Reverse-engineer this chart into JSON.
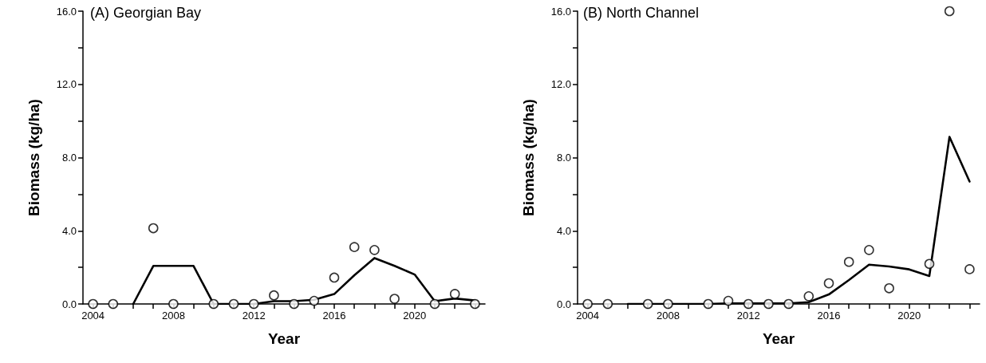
{
  "chart_data": [
    {
      "type": "line",
      "title": "(A) Georgian Bay",
      "xlabel": "Year",
      "ylabel": "Biomass (kg/ha)",
      "x": [
        2004,
        2005,
        2006,
        2007,
        2008,
        2009,
        2010,
        2011,
        2012,
        2013,
        2014,
        2015,
        2016,
        2017,
        2018,
        2019,
        2020,
        2021,
        2022,
        2023
      ],
      "series": [
        {
          "type": "scatter",
          "marker": "circle",
          "color": "#000000",
          "values": [
            0,
            0,
            null,
            4.14,
            0,
            null,
            0,
            0,
            0,
            0.47,
            0,
            0.17,
            1.44,
            3.11,
            2.95,
            0.28,
            null,
            0,
            0.55,
            0
          ]
        },
        {
          "marker": "none",
          "line_style": "solid",
          "color": "#000000",
          "values": [
            null,
            null,
            0,
            2.08,
            2.08,
            2.08,
            0,
            0,
            0,
            0.15,
            0.15,
            0.23,
            0.54,
            1.57,
            2.51,
            2.08,
            1.61,
            0.15,
            0.3,
            0.19
          ]
        }
      ],
      "xlim": [
        2003.5,
        2023.5
      ],
      "xticks": [
        2004,
        {
          "value": 2005,
          "label": null
        },
        {
          "value": 2006,
          "label": null
        },
        {
          "value": 2007,
          "label": null
        },
        2008,
        {
          "value": 2009,
          "label": null
        },
        {
          "value": 2010,
          "label": null
        },
        {
          "value": 2011,
          "label": null
        },
        2012,
        {
          "value": 2013,
          "label": null
        },
        {
          "value": 2014,
          "label": null
        },
        {
          "value": 2015,
          "label": null
        },
        2016,
        {
          "value": 2017,
          "label": null
        },
        {
          "value": 2018,
          "label": null
        },
        {
          "value": 2019,
          "label": null
        },
        2020,
        {
          "value": 2021,
          "label": null
        },
        {
          "value": 2022,
          "label": null
        },
        {
          "value": 2023,
          "label": null
        }
      ],
      "ylim": [
        0,
        16
      ],
      "yticks": [
        {
          "value": 0,
          "label": "0.0"
        },
        {
          "value": 2,
          "label": null
        },
        {
          "value": 4,
          "label": "4.0"
        },
        {
          "value": 6,
          "label": null
        },
        {
          "value": 8,
          "label": "8.0"
        },
        {
          "value": 10,
          "label": null
        },
        {
          "value": 12,
          "label": "12.0"
        },
        {
          "value": 14,
          "label": null
        },
        {
          "value": 16,
          "label": "16.0"
        }
      ],
      "grid": false
    },
    {
      "type": "line",
      "title": "(B) North Channel",
      "xlabel": "Year",
      "ylabel": "Biomass (kg/ha)",
      "x": [
        2004,
        2005,
        2006,
        2007,
        2008,
        2009,
        2010,
        2011,
        2012,
        2013,
        2014,
        2015,
        2016,
        2017,
        2018,
        2019,
        2020,
        2021,
        2022,
        2023
      ],
      "series": [
        {
          "type": "scatter",
          "marker": "circle",
          "color": "#000000",
          "values": [
            0,
            0,
            null,
            0,
            0,
            null,
            0,
            0.17,
            0,
            0,
            0,
            0.42,
            1.13,
            2.3,
            2.95,
            0.86,
            null,
            2.19,
            16.0,
            1.9
          ]
        },
        {
          "marker": "none",
          "line_style": "solid",
          "color": "#000000",
          "values": [
            null,
            null,
            0,
            0,
            0,
            0,
            0,
            0.03,
            0.03,
            0.03,
            0.03,
            0.1,
            0.52,
            1.31,
            2.15,
            2.05,
            1.89,
            1.53,
            9.13,
            6.69
          ]
        }
      ],
      "xlim": [
        2003.5,
        2023.5
      ],
      "xticks": [
        2004,
        {
          "value": 2005,
          "label": null
        },
        {
          "value": 2006,
          "label": null
        },
        {
          "value": 2007,
          "label": null
        },
        2008,
        {
          "value": 2009,
          "label": null
        },
        {
          "value": 2010,
          "label": null
        },
        {
          "value": 2011,
          "label": null
        },
        2012,
        {
          "value": 2013,
          "label": null
        },
        {
          "value": 2014,
          "label": null
        },
        {
          "value": 2015,
          "label": null
        },
        2016,
        {
          "value": 2017,
          "label": null
        },
        {
          "value": 2018,
          "label": null
        },
        {
          "value": 2019,
          "label": null
        },
        2020,
        {
          "value": 2021,
          "label": null
        },
        {
          "value": 2022,
          "label": null
        },
        {
          "value": 2023,
          "label": null
        }
      ],
      "ylim": [
        0,
        16
      ],
      "yticks": [
        {
          "value": 0,
          "label": "0.0"
        },
        {
          "value": 2,
          "label": null
        },
        {
          "value": 4,
          "label": "4.0"
        },
        {
          "value": 6,
          "label": null
        },
        {
          "value": 8,
          "label": "8.0"
        },
        {
          "value": 10,
          "label": null
        },
        {
          "value": 12,
          "label": "12.0"
        },
        {
          "value": 14,
          "label": null
        },
        {
          "value": 16,
          "label": "16.0"
        }
      ],
      "grid": false
    }
  ]
}
